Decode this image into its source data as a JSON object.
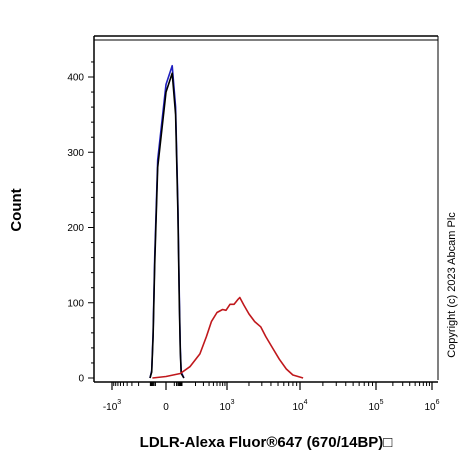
{
  "chart_data": {
    "type": "line",
    "title": "",
    "xlabel": "LDLR-Alexa Fluor®647 (670/14BP)□",
    "ylabel": "Count",
    "x_scale": "biexponential",
    "x_ticks": [
      {
        "value": -1000,
        "label": "-10",
        "exp": "3"
      },
      {
        "value": 0,
        "label": "0",
        "exp": ""
      },
      {
        "value": 1000,
        "label": "10",
        "exp": "3"
      },
      {
        "value": 10000,
        "label": "10",
        "exp": "4"
      },
      {
        "value": 100000,
        "label": "10",
        "exp": "5"
      },
      {
        "value": 1000000,
        "label": "10",
        "exp": "6"
      }
    ],
    "y_ticks": [
      0,
      100,
      200,
      300,
      400
    ],
    "ylim": [
      0,
      450
    ],
    "grid": false,
    "legend": "none",
    "series": [
      {
        "color": "#1f1fbf",
        "points": [
          [
            -100,
            0
          ],
          [
            -60,
            10
          ],
          [
            -40,
            60
          ],
          [
            -25,
            160
          ],
          [
            -10,
            290
          ],
          [
            0,
            390
          ],
          [
            5,
            415
          ],
          [
            15,
            360
          ],
          [
            30,
            230
          ],
          [
            45,
            110
          ],
          [
            60,
            40
          ],
          [
            80,
            8
          ],
          [
            110,
            0
          ]
        ]
      },
      {
        "color": "#000000",
        "points": [
          [
            -100,
            0
          ],
          [
            -60,
            8
          ],
          [
            -40,
            55
          ],
          [
            -25,
            150
          ],
          [
            -10,
            280
          ],
          [
            0,
            380
          ],
          [
            5,
            405
          ],
          [
            15,
            350
          ],
          [
            30,
            220
          ],
          [
            45,
            100
          ],
          [
            60,
            35
          ],
          [
            80,
            6
          ],
          [
            110,
            0
          ]
        ]
      },
      {
        "color": "#c0181c",
        "points": [
          [
            -50,
            0
          ],
          [
            0,
            2
          ],
          [
            60,
            6
          ],
          [
            150,
            15
          ],
          [
            250,
            32
          ],
          [
            350,
            55
          ],
          [
            450,
            75
          ],
          [
            600,
            87
          ],
          [
            800,
            91
          ],
          [
            950,
            90
          ],
          [
            1100,
            98
          ],
          [
            1250,
            98
          ],
          [
            1400,
            104
          ],
          [
            1500,
            107
          ],
          [
            1700,
            97
          ],
          [
            2000,
            85
          ],
          [
            2400,
            75
          ],
          [
            2900,
            68
          ],
          [
            3400,
            55
          ],
          [
            4200,
            40
          ],
          [
            5200,
            25
          ],
          [
            6500,
            12
          ],
          [
            8000,
            4
          ],
          [
            11000,
            0
          ]
        ]
      }
    ]
  },
  "copyright": "Copyright (c) 2023 Abcam Plc"
}
